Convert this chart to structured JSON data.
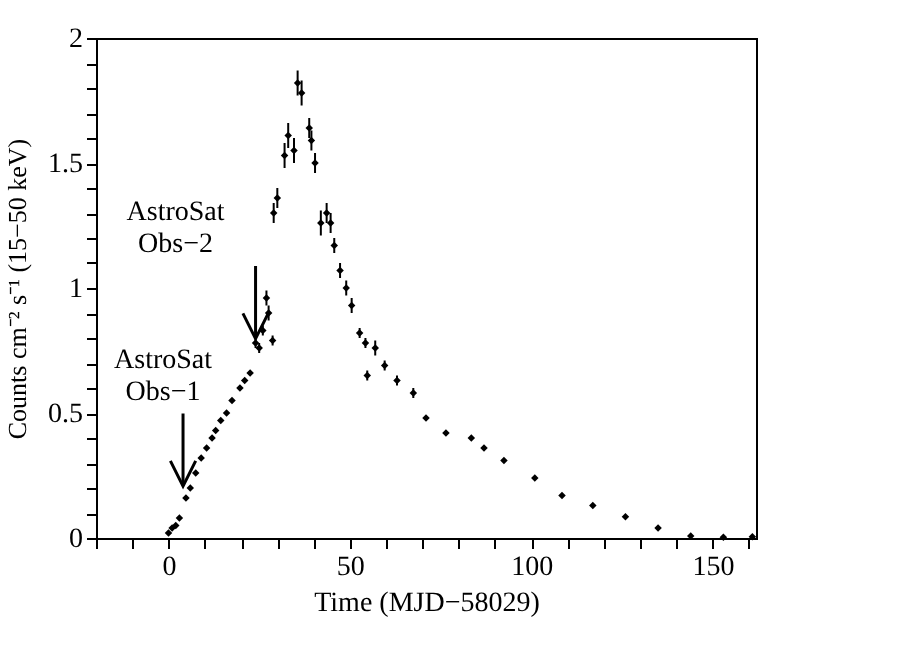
{
  "chart_data": {
    "type": "scatter",
    "xlabel": "Time (MJD−58029)",
    "ylabel": "Counts cm⁻² s⁻¹ (15−50 keV)",
    "x": [
      0,
      1,
      2,
      3,
      4.8,
      6,
      7.5,
      9,
      10.5,
      12,
      13,
      14.4,
      16,
      17.5,
      19.7,
      21,
      22.5,
      24,
      25,
      26,
      27,
      27.6,
      28.7,
      29,
      30,
      32,
      33,
      34.6,
      35.6,
      36.7,
      38.8,
      39.4,
      40.4,
      42,
      43.6,
      44.7,
      45.7,
      47.3,
      49,
      50.5,
      52.7,
      54.3,
      54.8,
      57,
      59.6,
      63,
      67.5,
      71,
      76.5,
      83.5,
      87,
      92.5,
      101,
      108.5,
      117,
      126,
      135,
      144,
      153,
      161
    ],
    "values": [
      0.02,
      0.04,
      0.05,
      0.08,
      0.16,
      0.2,
      0.26,
      0.32,
      0.36,
      0.4,
      0.43,
      0.47,
      0.5,
      0.55,
      0.6,
      0.63,
      0.66,
      0.78,
      0.76,
      0.83,
      0.96,
      0.9,
      0.79,
      1.3,
      1.36,
      1.53,
      1.61,
      1.55,
      1.82,
      1.78,
      1.64,
      1.59,
      1.5,
      1.26,
      1.3,
      1.26,
      1.17,
      1.07,
      1.0,
      0.93,
      0.82,
      0.78,
      0.65,
      0.76,
      0.69,
      0.63,
      0.58,
      0.48,
      0.42,
      0.4,
      0.36,
      0.31,
      0.24,
      0.17,
      0.13,
      0.085,
      0.04,
      0.008,
      0.003,
      0.005
    ],
    "errors": [
      null,
      null,
      null,
      null,
      null,
      null,
      null,
      null,
      null,
      null,
      null,
      null,
      null,
      null,
      null,
      null,
      null,
      0.02,
      0.02,
      0.02,
      0.03,
      0.03,
      0.02,
      0.04,
      0.04,
      0.05,
      0.05,
      0.05,
      0.05,
      0.05,
      0.04,
      0.04,
      0.04,
      0.05,
      0.04,
      0.04,
      0.03,
      0.03,
      0.03,
      0.03,
      0.02,
      0.02,
      0.02,
      0.03,
      0.02,
      0.02,
      0.02,
      null,
      null,
      null,
      null,
      null,
      null,
      null,
      null,
      null,
      null,
      null,
      null,
      null
    ],
    "color": "#000000",
    "marker": "diamond",
    "xlim": [
      -20,
      162
    ],
    "ylim": [
      0,
      2
    ],
    "xticks": [
      {
        "value": -20,
        "label": null
      },
      {
        "value": -10,
        "label": null
      },
      0,
      {
        "value": 10,
        "label": null
      },
      {
        "value": 20,
        "label": null
      },
      {
        "value": 30,
        "label": null
      },
      {
        "value": 40,
        "label": null
      },
      50,
      {
        "value": 60,
        "label": null
      },
      {
        "value": 70,
        "label": null
      },
      {
        "value": 80,
        "label": null
      },
      {
        "value": 90,
        "label": null
      },
      100,
      {
        "value": 110,
        "label": null
      },
      {
        "value": 120,
        "label": null
      },
      {
        "value": 130,
        "label": null
      },
      {
        "value": 140,
        "label": null
      },
      150,
      {
        "value": 160,
        "label": null
      }
    ],
    "yticks": [
      0,
      {
        "value": 0.1,
        "label": null
      },
      {
        "value": 0.2,
        "label": null
      },
      {
        "value": 0.3,
        "label": null
      },
      {
        "value": 0.4,
        "label": null
      },
      0.5,
      {
        "value": 0.6,
        "label": null
      },
      {
        "value": 0.7,
        "label": null
      },
      {
        "value": 0.8,
        "label": null
      },
      {
        "value": 0.9,
        "label": null
      },
      1,
      {
        "value": 1.1,
        "label": null
      },
      {
        "value": 1.2,
        "label": null
      },
      {
        "value": 1.3,
        "label": null
      },
      {
        "value": 1.4,
        "label": null
      },
      1.5,
      {
        "value": 1.6,
        "label": null
      },
      {
        "value": 1.7,
        "label": null
      },
      {
        "value": 1.8,
        "label": null
      },
      {
        "value": 1.9,
        "label": null
      },
      2
    ],
    "grid": false,
    "annotations": [
      {
        "text": "AstroSat\nObs−1",
        "x": 4,
        "y": 0.21
      },
      {
        "text": "AstroSat\nObs−2",
        "x": 24,
        "y": 0.8
      }
    ]
  }
}
